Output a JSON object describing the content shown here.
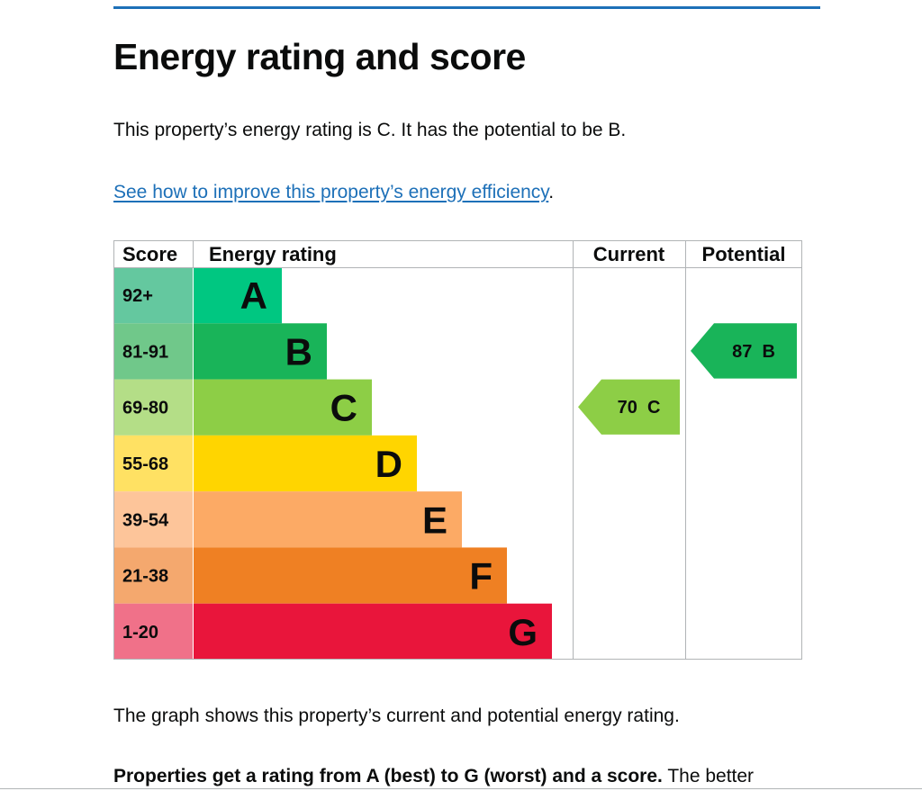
{
  "page": {
    "heading": "Energy rating and score",
    "intro": "This property’s energy rating is C. It has the potential to be B.",
    "improve_link": "See how to improve this property’s energy efficiency",
    "improve_suffix": ".",
    "graph_description": "The graph shows this property’s current and potential energy rating.",
    "bottom_bold": "Properties get a rating from A (best) to G (worst) and a score.",
    "bottom_rest": " The better"
  },
  "chart_data": {
    "type": "bar",
    "headers": {
      "score": "Score",
      "rating": "Energy rating",
      "current": "Current",
      "potential": "Potential"
    },
    "bands": [
      {
        "letter": "A",
        "score_range": "92+",
        "color": "#00c781",
        "score_bg": "#64c89f"
      },
      {
        "letter": "B",
        "score_range": "81-91",
        "color": "#19b459",
        "score_bg": "#70c88a"
      },
      {
        "letter": "C",
        "score_range": "69-80",
        "color": "#8dce46",
        "score_bg": "#b4de87"
      },
      {
        "letter": "D",
        "score_range": "55-68",
        "color": "#ffd500",
        "score_bg": "#ffe163"
      },
      {
        "letter": "E",
        "score_range": "39-54",
        "color": "#fcaa65",
        "score_bg": "#fdc59a"
      },
      {
        "letter": "F",
        "score_range": "21-38",
        "color": "#ef8023",
        "score_bg": "#f4a86e"
      },
      {
        "letter": "G",
        "score_range": "1-20",
        "color": "#e9153b",
        "score_bg": "#f07189"
      }
    ],
    "current": {
      "score": 70,
      "letter": "C",
      "label": "70  C",
      "color": "#8dce46"
    },
    "potential": {
      "score": 87,
      "letter": "B",
      "label": "87  B",
      "color": "#19b459"
    }
  }
}
